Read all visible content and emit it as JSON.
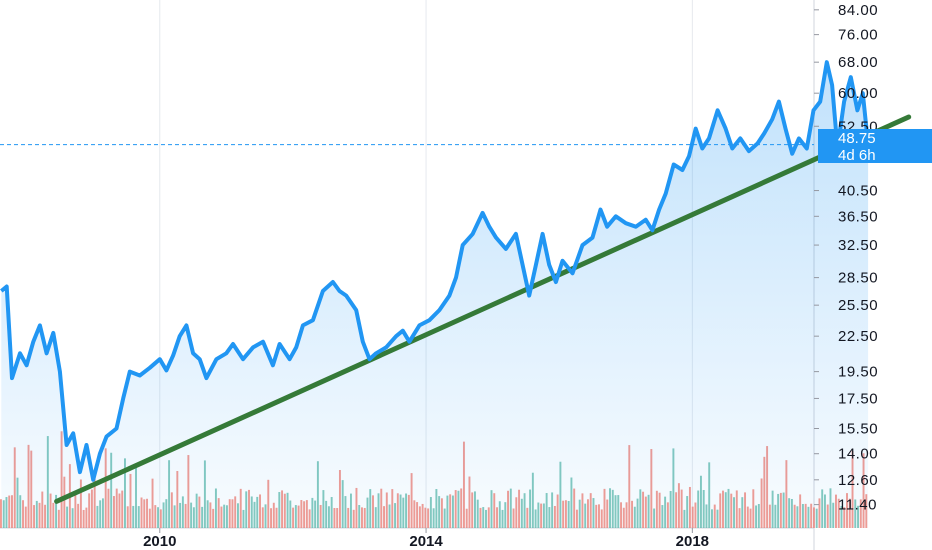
{
  "chart_data": {
    "type": "line",
    "scale": "log",
    "xlim": [
      2007.6,
      2021.6
    ],
    "ylim": [
      10.8,
      86
    ],
    "x_ticks": [
      "2010",
      "2014",
      "2018"
    ],
    "x_tick_values": [
      2010,
      2014,
      2018
    ],
    "y_ticks": [
      "84.00",
      "76.00",
      "68.00",
      "60.00",
      "52.50",
      "40.50",
      "36.50",
      "32.50",
      "28.50",
      "25.50",
      "22.50",
      "19.50",
      "17.50",
      "15.50",
      "14.00",
      "12.60",
      "11.40"
    ],
    "y_tick_values": [
      84,
      76,
      68,
      60,
      52.5,
      40.5,
      36.5,
      32.5,
      28.5,
      25.5,
      22.5,
      19.5,
      17.5,
      15.5,
      14,
      12.6,
      11.4
    ],
    "last_price": "48.75",
    "countdown": "4d 6h",
    "series": [
      {
        "color": "#2196f3",
        "points": [
          [
            2007.62,
            27.0
          ],
          [
            2007.7,
            27.5
          ],
          [
            2007.78,
            19.0
          ],
          [
            2007.9,
            21.0
          ],
          [
            2008.0,
            20.0
          ],
          [
            2008.1,
            22.0
          ],
          [
            2008.2,
            23.5
          ],
          [
            2008.3,
            21.0
          ],
          [
            2008.4,
            22.8
          ],
          [
            2008.5,
            19.5
          ],
          [
            2008.6,
            14.5
          ],
          [
            2008.7,
            15.2
          ],
          [
            2008.8,
            13.0
          ],
          [
            2008.9,
            14.5
          ],
          [
            2009.0,
            12.6
          ],
          [
            2009.1,
            14.0
          ],
          [
            2009.2,
            15.0
          ],
          [
            2009.35,
            15.5
          ],
          [
            2009.45,
            17.5
          ],
          [
            2009.55,
            19.5
          ],
          [
            2009.7,
            19.2
          ],
          [
            2009.85,
            19.8
          ],
          [
            2010.0,
            20.5
          ],
          [
            2010.1,
            19.6
          ],
          [
            2010.2,
            20.8
          ],
          [
            2010.3,
            22.5
          ],
          [
            2010.4,
            23.5
          ],
          [
            2010.5,
            21.0
          ],
          [
            2010.6,
            20.5
          ],
          [
            2010.7,
            19.0
          ],
          [
            2010.85,
            20.5
          ],
          [
            2011.0,
            21.0
          ],
          [
            2011.1,
            21.8
          ],
          [
            2011.25,
            20.5
          ],
          [
            2011.4,
            21.5
          ],
          [
            2011.55,
            22.0
          ],
          [
            2011.7,
            20.0
          ],
          [
            2011.8,
            21.8
          ],
          [
            2011.95,
            20.5
          ],
          [
            2012.05,
            21.5
          ],
          [
            2012.15,
            23.5
          ],
          [
            2012.3,
            24.0
          ],
          [
            2012.45,
            27.0
          ],
          [
            2012.6,
            28.0
          ],
          [
            2012.7,
            27.0
          ],
          [
            2012.8,
            26.5
          ],
          [
            2012.95,
            25.0
          ],
          [
            2013.05,
            22.0
          ],
          [
            2013.15,
            20.5
          ],
          [
            2013.25,
            21.0
          ],
          [
            2013.4,
            21.5
          ],
          [
            2013.55,
            22.5
          ],
          [
            2013.65,
            23.0
          ],
          [
            2013.75,
            22.0
          ],
          [
            2013.9,
            23.5
          ],
          [
            2014.05,
            24.0
          ],
          [
            2014.2,
            25.0
          ],
          [
            2014.35,
            26.5
          ],
          [
            2014.45,
            28.5
          ],
          [
            2014.55,
            32.5
          ],
          [
            2014.7,
            34.0
          ],
          [
            2014.85,
            37.0
          ],
          [
            2014.95,
            35.0
          ],
          [
            2015.05,
            33.5
          ],
          [
            2015.2,
            32.0
          ],
          [
            2015.35,
            34.0
          ],
          [
            2015.45,
            30.0
          ],
          [
            2015.55,
            26.5
          ],
          [
            2015.65,
            30.0
          ],
          [
            2015.75,
            34.0
          ],
          [
            2015.85,
            30.0
          ],
          [
            2015.95,
            28.0
          ],
          [
            2016.05,
            30.5
          ],
          [
            2016.2,
            29.0
          ],
          [
            2016.35,
            32.5
          ],
          [
            2016.5,
            33.5
          ],
          [
            2016.62,
            37.5
          ],
          [
            2016.72,
            35.0
          ],
          [
            2016.85,
            36.5
          ],
          [
            2017.0,
            35.5
          ],
          [
            2017.15,
            35.0
          ],
          [
            2017.3,
            36.0
          ],
          [
            2017.4,
            34.5
          ],
          [
            2017.5,
            37.5
          ],
          [
            2017.6,
            40.0
          ],
          [
            2017.72,
            45.0
          ],
          [
            2017.85,
            44.0
          ],
          [
            2017.95,
            46.5
          ],
          [
            2018.05,
            52.0
          ],
          [
            2018.15,
            48.0
          ],
          [
            2018.25,
            50.0
          ],
          [
            2018.38,
            56.0
          ],
          [
            2018.5,
            52.0
          ],
          [
            2018.6,
            48.0
          ],
          [
            2018.72,
            50.0
          ],
          [
            2018.85,
            47.5
          ],
          [
            2018.98,
            49.0
          ],
          [
            2019.08,
            51.0
          ],
          [
            2019.2,
            54.0
          ],
          [
            2019.3,
            58.0
          ],
          [
            2019.4,
            52.0
          ],
          [
            2019.5,
            47.0
          ],
          [
            2019.6,
            50.0
          ],
          [
            2019.72,
            48.0
          ],
          [
            2019.82,
            56.0
          ],
          [
            2019.92,
            58.0
          ],
          [
            2020.02,
            68.0
          ],
          [
            2020.1,
            62.0
          ],
          [
            2020.18,
            48.0
          ],
          [
            2020.28,
            58.0
          ],
          [
            2020.38,
            64.0
          ],
          [
            2020.48,
            56.0
          ],
          [
            2020.56,
            60.0
          ],
          [
            2020.64,
            48.75
          ]
        ]
      },
      {
        "color": "#357a38",
        "points": [
          [
            2008.45,
            11.55
          ],
          [
            2021.25,
            54.5
          ]
        ]
      }
    ],
    "volume": {
      "up_color": "#5cb8a8",
      "down_color": "#f07a6e",
      "x_start": 2007.6,
      "x_end": 2020.64,
      "bars": 315
    }
  }
}
